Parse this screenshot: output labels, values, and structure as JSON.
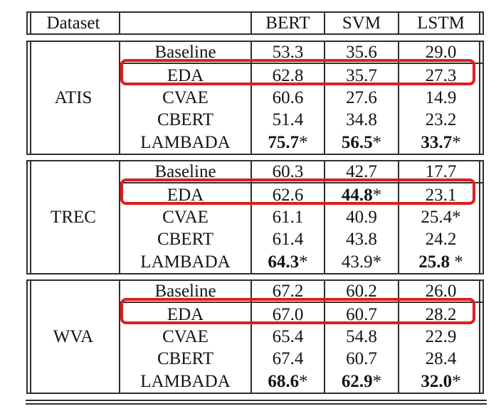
{
  "colors": {
    "highlight_red": "#e11d1d",
    "rule": "#2e2e2e",
    "text": "#141414"
  },
  "header": {
    "dataset_label": "Dataset",
    "blank": "",
    "columns": [
      "BERT",
      "SVM",
      "LSTM"
    ]
  },
  "table": {
    "blocks": [
      {
        "dataset": "ATIS",
        "rows": [
          {
            "method": "Baseline",
            "highlight": false,
            "cells": [
              {
                "v": "53.3",
                "s": "",
                "b": false
              },
              {
                "v": "35.6",
                "s": "",
                "b": false
              },
              {
                "v": "29.0",
                "s": "",
                "b": false
              }
            ]
          },
          {
            "method": "EDA",
            "highlight": true,
            "cells": [
              {
                "v": "62.8",
                "s": "",
                "b": false
              },
              {
                "v": "35.7",
                "s": "",
                "b": false
              },
              {
                "v": "27.3",
                "s": "",
                "b": false
              }
            ]
          },
          {
            "method": "CVAE",
            "highlight": false,
            "cells": [
              {
                "v": "60.6",
                "s": "",
                "b": false
              },
              {
                "v": "27.6",
                "s": "",
                "b": false
              },
              {
                "v": "14.9",
                "s": "",
                "b": false
              }
            ]
          },
          {
            "method": "CBERT",
            "highlight": false,
            "cells": [
              {
                "v": "51.4",
                "s": "",
                "b": false
              },
              {
                "v": "34.8",
                "s": "",
                "b": false
              },
              {
                "v": "23.2",
                "s": "",
                "b": false
              }
            ]
          },
          {
            "method": "LAMBADA",
            "highlight": false,
            "cells": [
              {
                "v": "75.7",
                "s": "*",
                "b": true
              },
              {
                "v": "56.5",
                "s": "*",
                "b": true
              },
              {
                "v": "33.7",
                "s": "*",
                "b": true
              }
            ]
          }
        ]
      },
      {
        "dataset": "TREC",
        "rows": [
          {
            "method": "Baseline",
            "highlight": false,
            "cells": [
              {
                "v": "60.3",
                "s": "",
                "b": false
              },
              {
                "v": "42.7",
                "s": "",
                "b": false
              },
              {
                "v": "17.7",
                "s": "",
                "b": false
              }
            ]
          },
          {
            "method": "EDA",
            "highlight": true,
            "cells": [
              {
                "v": "62.6",
                "s": "",
                "b": false
              },
              {
                "v": "44.8",
                "s": "*",
                "b": true
              },
              {
                "v": "23.1",
                "s": "",
                "b": false
              }
            ]
          },
          {
            "method": "CVAE",
            "highlight": false,
            "cells": [
              {
                "v": "61.1",
                "s": "",
                "b": false
              },
              {
                "v": "40.9",
                "s": "",
                "b": false
              },
              {
                "v": "25.4",
                "s": "*",
                "b": false
              }
            ]
          },
          {
            "method": "CBERT",
            "highlight": false,
            "cells": [
              {
                "v": "61.4",
                "s": "",
                "b": false
              },
              {
                "v": "43.8",
                "s": "",
                "b": false
              },
              {
                "v": "24.2",
                "s": "",
                "b": false
              }
            ]
          },
          {
            "method": "LAMBADA",
            "highlight": false,
            "cells": [
              {
                "v": "64.3",
                "s": "*",
                "b": true
              },
              {
                "v": "43.9",
                "s": "*",
                "b": false
              },
              {
                "v": "25.8",
                "s": " *",
                "b": true
              }
            ]
          }
        ]
      },
      {
        "dataset": "WVA",
        "rows": [
          {
            "method": "Baseline",
            "highlight": false,
            "cells": [
              {
                "v": "67.2",
                "s": "",
                "b": false
              },
              {
                "v": "60.2",
                "s": "",
                "b": false
              },
              {
                "v": "26.0",
                "s": "",
                "b": false
              }
            ]
          },
          {
            "method": "EDA",
            "highlight": true,
            "cells": [
              {
                "v": "67.0",
                "s": "",
                "b": false
              },
              {
                "v": "60.7",
                "s": "",
                "b": false
              },
              {
                "v": "28.2",
                "s": "",
                "b": false
              }
            ]
          },
          {
            "method": "CVAE",
            "highlight": false,
            "cells": [
              {
                "v": "65.4",
                "s": "",
                "b": false
              },
              {
                "v": "54.8",
                "s": "",
                "b": false
              },
              {
                "v": "22.9",
                "s": "",
                "b": false
              }
            ]
          },
          {
            "method": "CBERT",
            "highlight": false,
            "cells": [
              {
                "v": "67.4",
                "s": "",
                "b": false
              },
              {
                "v": "60.7",
                "s": "",
                "b": false
              },
              {
                "v": "28.4",
                "s": "",
                "b": false
              }
            ]
          },
          {
            "method": "LAMBADA",
            "highlight": false,
            "cells": [
              {
                "v": "68.6",
                "s": "*",
                "b": true
              },
              {
                "v": "62.9",
                "s": "*",
                "b": true
              },
              {
                "v": "32.0",
                "s": "*",
                "b": true
              }
            ]
          }
        ]
      }
    ]
  }
}
